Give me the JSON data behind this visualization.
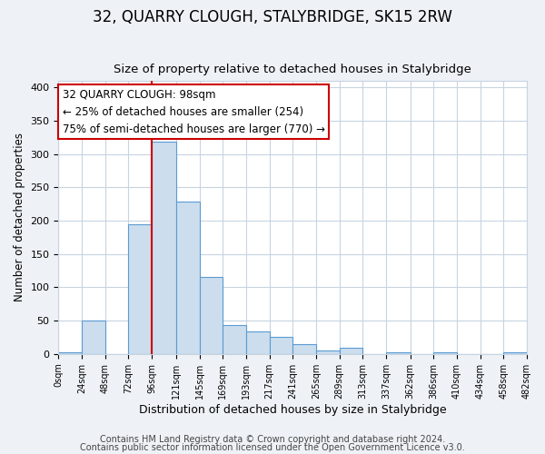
{
  "title": "32, QUARRY CLOUGH, STALYBRIDGE, SK15 2RW",
  "subtitle": "Size of property relative to detached houses in Stalybridge",
  "xlabel": "Distribution of detached houses by size in Stalybridge",
  "ylabel": "Number of detached properties",
  "bar_edges": [
    0,
    24,
    48,
    72,
    96,
    121,
    145,
    169,
    193,
    217,
    241,
    265,
    289,
    313,
    337,
    362,
    386,
    410,
    434,
    458,
    482
  ],
  "bar_heights": [
    2,
    50,
    0,
    195,
    318,
    228,
    115,
    44,
    34,
    25,
    15,
    5,
    10,
    0,
    2,
    0,
    2,
    0,
    0,
    2
  ],
  "bar_color": "#ccdded",
  "bar_edge_color": "#5b9bd5",
  "vline_x": 96,
  "vline_color": "#cc0000",
  "annotation_text": "32 QUARRY CLOUGH: 98sqm\n← 25% of detached houses are smaller (254)\n75% of semi-detached houses are larger (770) →",
  "annotation_box_color": "#ffffff",
  "annotation_box_edge": "#cc0000",
  "annotation_fontsize": 8.5,
  "ylim": [
    0,
    410
  ],
  "yticks": [
    0,
    50,
    100,
    150,
    200,
    250,
    300,
    350,
    400
  ],
  "tick_labels": [
    "0sqm",
    "24sqm",
    "48sqm",
    "72sqm",
    "96sqm",
    "121sqm",
    "145sqm",
    "169sqm",
    "193sqm",
    "217sqm",
    "241sqm",
    "265sqm",
    "289sqm",
    "313sqm",
    "337sqm",
    "362sqm",
    "386sqm",
    "410sqm",
    "434sqm",
    "458sqm",
    "482sqm"
  ],
  "footer_line1": "Contains HM Land Registry data © Crown copyright and database right 2024.",
  "footer_line2": "Contains public sector information licensed under the Open Government Licence v3.0.",
  "bg_color": "#eef2f7",
  "plot_bg_color": "#ffffff",
  "grid_color": "#c8d4e0",
  "title_fontsize": 12,
  "subtitle_fontsize": 9.5,
  "xlabel_fontsize": 9,
  "ylabel_fontsize": 8.5,
  "footer_fontsize": 7,
  "xtick_fontsize": 7,
  "ytick_fontsize": 8
}
